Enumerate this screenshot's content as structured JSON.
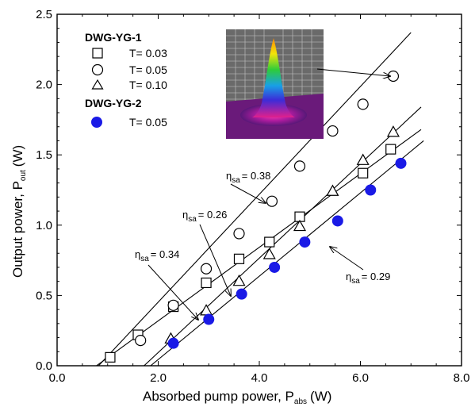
{
  "chart_data": {
    "type": "scatter",
    "xlabel_main": "Absorbed pump power, P",
    "xlabel_sub": "abs",
    "xlabel_unit": "(W)",
    "ylabel_main": "Output power, P",
    "ylabel_sub": "out",
    "ylabel_unit": "(W)",
    "xlim": [
      0,
      8
    ],
    "ylim": [
      0,
      2.5
    ],
    "xticks": [
      "0.0",
      "2.0",
      "4.0",
      "6.0",
      "8.0"
    ],
    "yticks": [
      "0.0",
      "0.5",
      "1.0",
      "1.5",
      "2.0",
      "2.5"
    ],
    "legend": {
      "group1": "DWG-YG-1",
      "group2": "DWG-YG-2",
      "entries": [
        "T= 0.03",
        "T= 0.05",
        "T= 0.10",
        "T= 0.05"
      ]
    },
    "series": [
      {
        "name": "T= 0.03",
        "group": "DWG-YG-1",
        "marker": "square",
        "x": [
          1.05,
          1.6,
          2.3,
          2.95,
          3.6,
          4.2,
          4.8,
          6.05,
          6.6
        ],
        "y": [
          0.06,
          0.22,
          0.42,
          0.59,
          0.76,
          0.88,
          1.06,
          1.37,
          1.54
        ]
      },
      {
        "name": "T= 0.05",
        "group": "DWG-YG-1",
        "marker": "circle",
        "x": [
          1.65,
          2.3,
          2.95,
          3.6,
          4.25,
          4.8,
          5.45,
          6.05,
          6.65
        ],
        "y": [
          0.18,
          0.43,
          0.69,
          0.94,
          1.17,
          1.42,
          1.67,
          1.86,
          2.06
        ]
      },
      {
        "name": "T= 0.10",
        "group": "DWG-YG-1",
        "marker": "triangle",
        "x": [
          2.25,
          2.95,
          3.6,
          4.2,
          4.8,
          5.45,
          6.05,
          6.65
        ],
        "y": [
          0.19,
          0.39,
          0.6,
          0.79,
          0.99,
          1.24,
          1.46,
          1.66
        ]
      },
      {
        "name": "T= 0.05",
        "group": "DWG-YG-2",
        "marker": "filled-circle",
        "x": [
          2.3,
          3.0,
          3.65,
          4.3,
          4.9,
          5.55,
          6.2,
          6.8
        ],
        "y": [
          0.16,
          0.33,
          0.51,
          0.7,
          0.88,
          1.03,
          1.25,
          1.44
        ]
      }
    ],
    "fit_lines": [
      {
        "label_main": "η",
        "label_sub": "sa",
        "label_value": "= 0.38",
        "x": [
          0.82,
          7.0
        ],
        "y": [
          0.0,
          2.37
        ]
      },
      {
        "label_main": "η",
        "label_sub": "sa",
        "label_value": "= 0.26",
        "x": [
          0.78,
          7.2
        ],
        "y": [
          0.0,
          1.68
        ]
      },
      {
        "label_main": "η",
        "label_sub": "sa",
        "label_value": "= 0.34",
        "x": [
          1.72,
          7.2
        ],
        "y": [
          0.0,
          1.84
        ]
      },
      {
        "label_main": "η",
        "label_sub": "sa",
        "label_value": "= 0.29",
        "x": [
          1.85,
          7.25
        ],
        "y": [
          0.0,
          1.6
        ]
      }
    ],
    "colors": {
      "filled_marker": "#1a1ae6",
      "axis": "#000000"
    }
  }
}
